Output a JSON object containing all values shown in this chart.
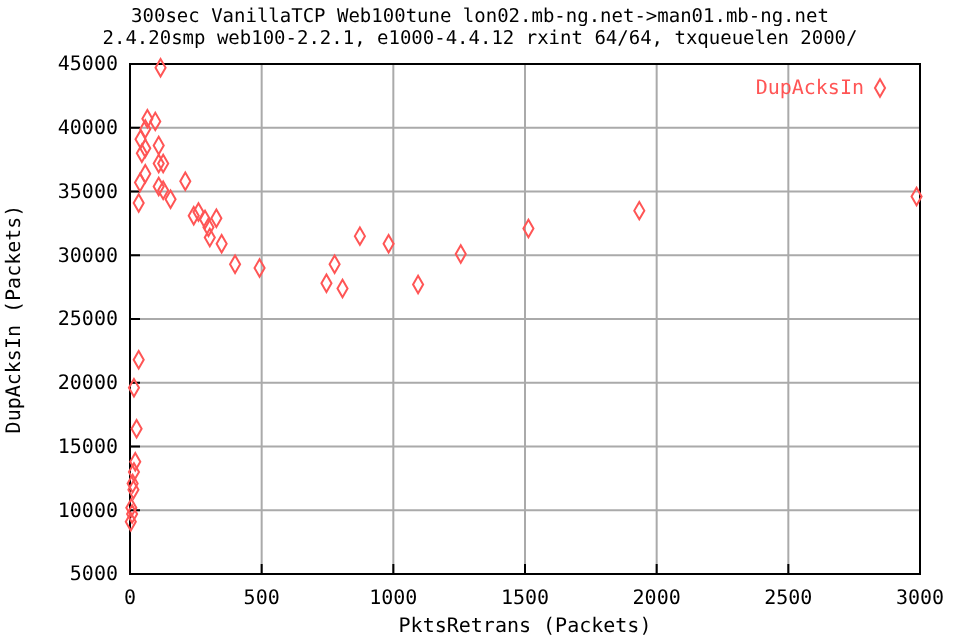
{
  "chart_data": {
    "type": "scatter",
    "title": "300sec VanillaTCP Web100tune lon02.mb-ng.net->man01.mb-ng.net",
    "subtitle": "2.4.20smp web100-2.2.1, e1000-4.4.12 rxint 64/64, txqueuelen 2000/",
    "xlabel": "PktsRetrans (Packets)",
    "ylabel": "DupAcksIn (Packets)",
    "xlim": [
      0,
      3000
    ],
    "ylim": [
      5000,
      45000
    ],
    "xticks": [
      0,
      500,
      1000,
      1500,
      2000,
      2500,
      3000
    ],
    "yticks": [
      5000,
      10000,
      15000,
      20000,
      25000,
      30000,
      35000,
      40000,
      45000
    ],
    "grid": true,
    "legend": "top right",
    "marker": "diamond",
    "series": [
      {
        "name": "DupAcksIn",
        "color": "#ff5555",
        "x": [
          116,
          66,
          96,
          58,
          40,
          58,
          45,
          109,
          109,
          126,
          58,
          38,
          109,
          126,
          210,
          33,
          154,
          242,
          260,
          285,
          328,
          298,
          303,
          348,
          399,
          492,
          33,
          15,
          25,
          20,
          15,
          10,
          13,
          5,
          3,
          8,
          746,
          777,
          807,
          873,
          982,
          1094,
          1256,
          1513,
          1934,
          2987
        ],
        "values": [
          44700,
          40700,
          40500,
          39900,
          39100,
          38400,
          38000,
          38600,
          37200,
          37200,
          36400,
          35700,
          35400,
          35100,
          35800,
          34100,
          34400,
          33100,
          33400,
          32800,
          32900,
          32200,
          31400,
          30900,
          29300,
          29000,
          21800,
          19600,
          16400,
          13800,
          13000,
          12100,
          11600,
          10200,
          9100,
          9700,
          27800,
          29300,
          27400,
          31500,
          30900,
          27700,
          30100,
          32100,
          33500,
          34600
        ]
      }
    ]
  }
}
